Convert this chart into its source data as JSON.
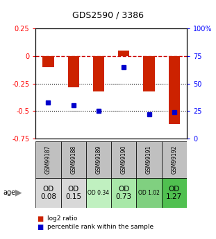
{
  "title": "GDS2590 / 3386",
  "samples": [
    "GSM99187",
    "GSM99188",
    "GSM99189",
    "GSM99190",
    "GSM99191",
    "GSM99192"
  ],
  "log2_ratio": [
    -0.1,
    -0.28,
    -0.32,
    0.05,
    -0.32,
    -0.62
  ],
  "percentile_rank": [
    33,
    30,
    25,
    65,
    22,
    24
  ],
  "age_labels": [
    "OD\n0.08",
    "OD\n0.15",
    "OD 0.34",
    "OD\n0.73",
    "OD 1.02",
    "OD\n1.27"
  ],
  "age_colors": [
    "#d8d8d8",
    "#d8d8d8",
    "#c0f0c0",
    "#a8e8a8",
    "#80d080",
    "#50c050"
  ],
  "age_small": [
    false,
    false,
    true,
    false,
    true,
    false
  ],
  "ylim_left": [
    -0.75,
    0.25
  ],
  "ylim_right": [
    0,
    100
  ],
  "bar_color": "#cc2200",
  "dot_color": "#0000cc",
  "zero_line_color": "#cc0000",
  "sample_bg": "#c0c0c0"
}
